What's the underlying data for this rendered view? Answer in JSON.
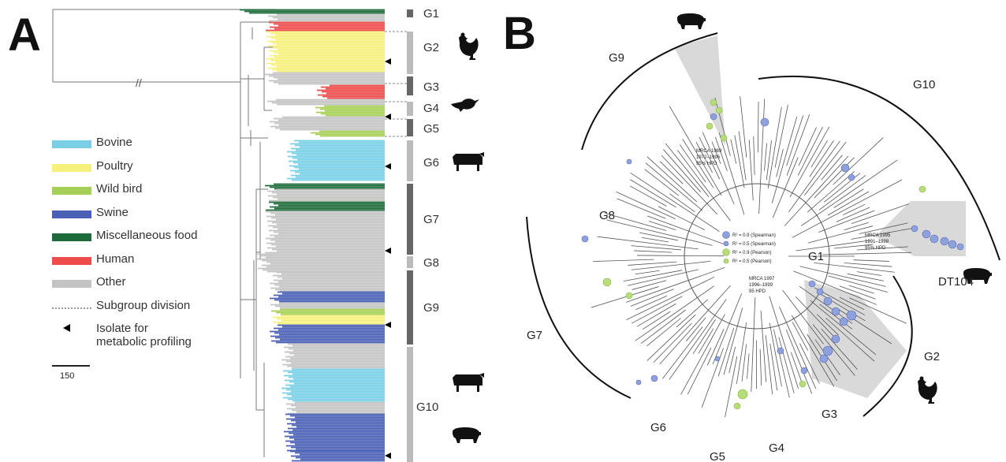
{
  "panel_a": {
    "letter": "A",
    "legend": [
      {
        "label": "Bovine",
        "color": "#79d0e6"
      },
      {
        "label": "Poultry",
        "color": "#f6f07c"
      },
      {
        "label": "Wild bird",
        "color": "#a8cf55"
      },
      {
        "label": "Swine",
        "color": "#4a60b6"
      },
      {
        "label": "Miscellaneous food",
        "color": "#1d6b3a"
      },
      {
        "label": "Human",
        "color": "#ee4b4b"
      },
      {
        "label": "Other",
        "color": "#c4c4c4"
      }
    ],
    "subgroup_label": "Subgroup division",
    "isolate_label_1": "Isolate for",
    "isolate_label_2": "metabolic profiling",
    "scale_label": "150",
    "groups": [
      "G1",
      "G2",
      "G3",
      "G4",
      "G5",
      "G6",
      "G7",
      "G8",
      "G9",
      "G10"
    ],
    "break_mark": "//"
  },
  "panel_b": {
    "letter": "B",
    "groups": [
      "G1",
      "G2",
      "G3",
      "G4",
      "G5",
      "G6",
      "G7",
      "G8",
      "G9",
      "G10"
    ],
    "dt104": "DT104",
    "mrca_1989": [
      "MRCA 1989",
      "1972–1996",
      "95% HPD"
    ],
    "mrca_1995": [
      "MRCA 1995",
      "1991–1998",
      "95% HPD"
    ],
    "mrca_1997": [
      "MRCA 1997",
      "1996–1999",
      "95 HPD"
    ],
    "inner_legend": [
      "R² = 0.9 (Spearman)",
      "R² = 0.5 (Spearman)",
      "R² = 0.9 (Pearson)",
      "R² = 0.5 (Pearson)"
    ]
  }
}
